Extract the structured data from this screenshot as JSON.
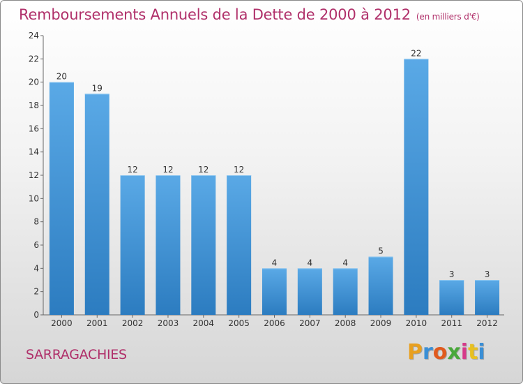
{
  "header": {
    "title": "Remboursements Annuels de la Dette de 2000 à 2012",
    "unit": "(en milliers d'€)"
  },
  "footer": {
    "commune": "SARRAGACHIES",
    "brand": "Proxiti",
    "brand_colors": [
      "#e8a020",
      "#3a8fd6",
      "#e05a1e",
      "#49a83a",
      "#d63a8a",
      "#e8c020",
      "#3a8fd6"
    ]
  },
  "colors": {
    "accent": "#b0306a",
    "bar_top": "#5aa9e6",
    "bar_bottom": "#2c7cc0"
  },
  "chart_data": {
    "type": "bar",
    "categories": [
      "2000",
      "2001",
      "2002",
      "2003",
      "2004",
      "2005",
      "2006",
      "2007",
      "2008",
      "2009",
      "2010",
      "2011",
      "2012"
    ],
    "values": [
      20,
      19,
      12,
      12,
      12,
      12,
      4,
      4,
      4,
      5,
      22,
      3,
      3
    ],
    "ylim": [
      0,
      24
    ],
    "yticks": [
      0,
      2,
      4,
      6,
      8,
      10,
      12,
      14,
      16,
      18,
      20,
      22,
      24
    ],
    "grid": false,
    "data_labels": true
  }
}
